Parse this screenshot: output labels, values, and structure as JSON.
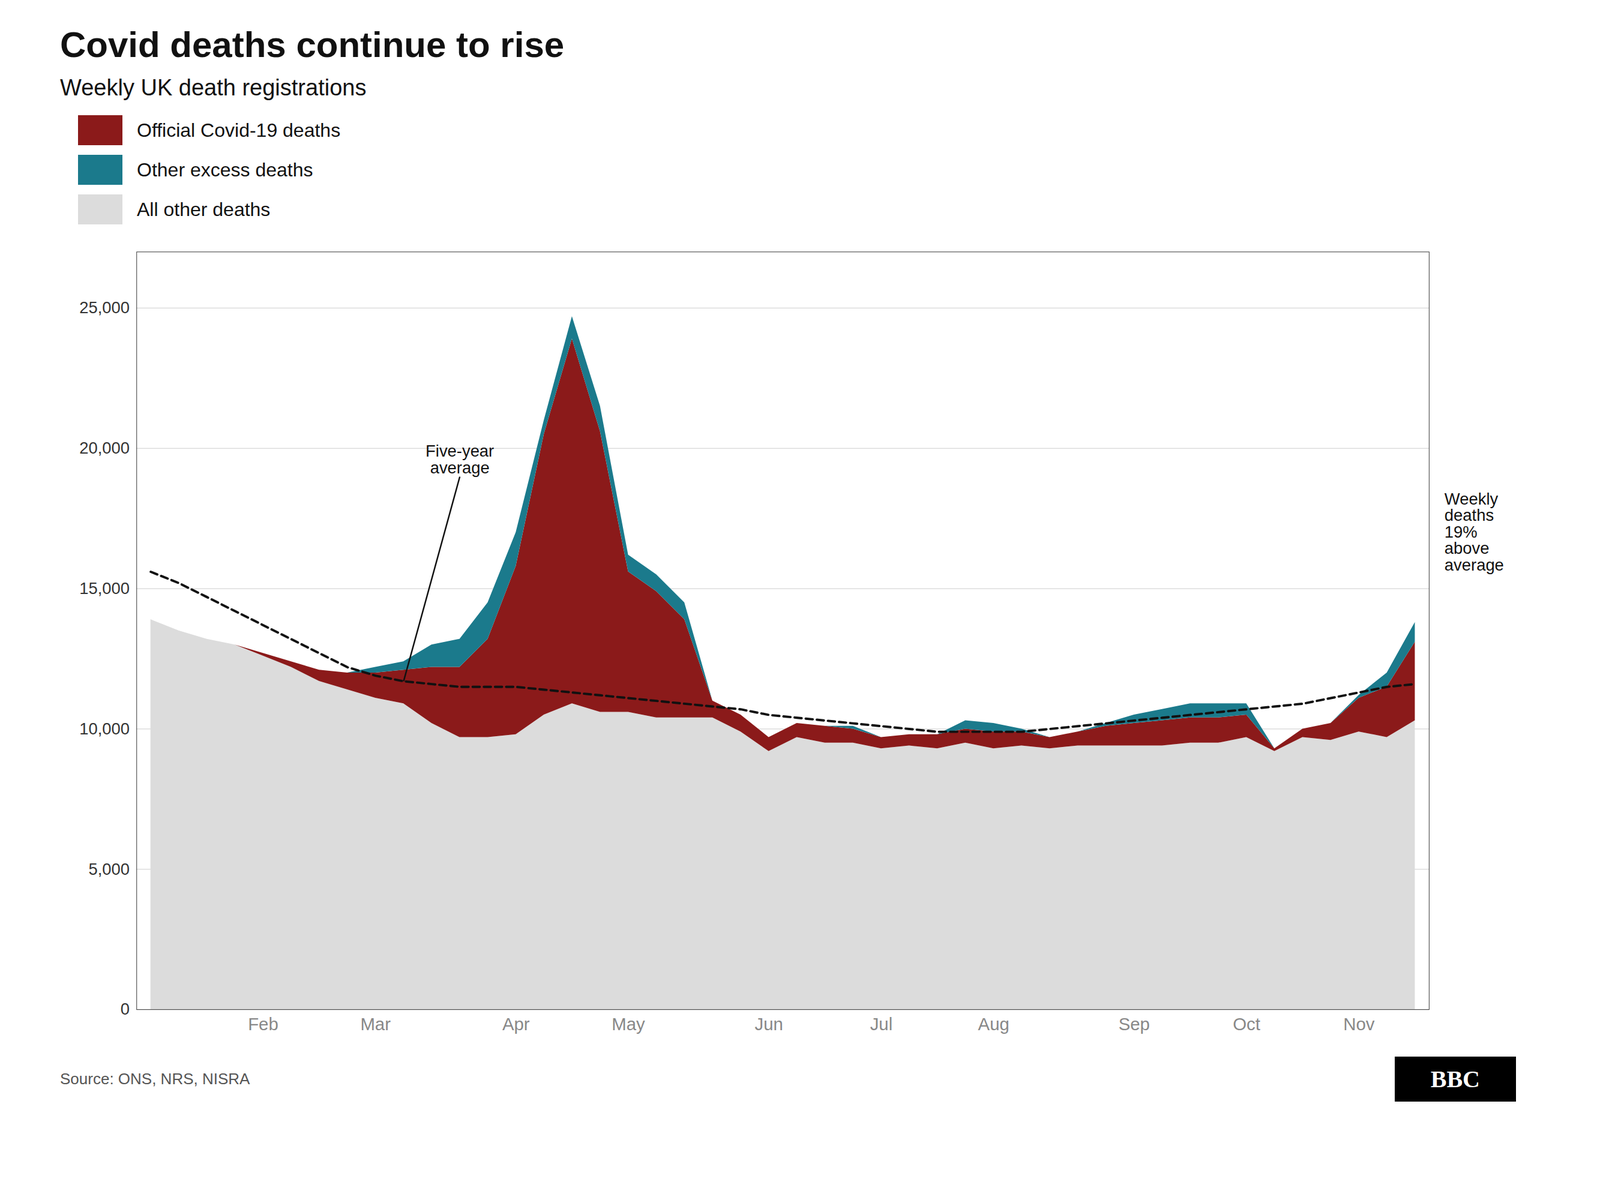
{
  "chart_data": {
    "type": "area",
    "stacked": true,
    "title": "Covid deaths continue to rise",
    "subtitle": "Weekly UK death registrations",
    "source": "Source: ONS, NRS, NISRA",
    "logo": "BBC",
    "annotations": [
      {
        "text": "Five-year\naverage"
      },
      {
        "text": "Weekly\ndeaths\n19%\nabove\naverage"
      }
    ],
    "categories": [
      null,
      null,
      null,
      null,
      "Feb",
      null,
      null,
      null,
      "Mar",
      null,
      null,
      null,
      null,
      "Apr",
      null,
      null,
      null,
      "May",
      null,
      null,
      null,
      null,
      "Jun",
      null,
      null,
      null,
      "Jul",
      null,
      null,
      null,
      "Aug",
      null,
      null,
      null,
      null,
      "Sep",
      null,
      null,
      null,
      "Oct",
      null,
      null,
      null,
      "Nov",
      null,
      null
    ],
    "series": [
      {
        "name": "Official Covid-19 deaths",
        "color": "#8B1A1A",
        "type": "area",
        "values": [
          0,
          0,
          0,
          0,
          100,
          200,
          400,
          600,
          900,
          1200,
          2000,
          2500,
          3500,
          6000,
          10000,
          13000,
          10000,
          5000,
          4500,
          3500,
          600,
          600,
          500,
          500,
          600,
          500,
          400,
          400,
          500,
          500,
          600,
          500,
          400,
          500,
          700,
          800,
          900,
          900,
          900,
          800,
          100,
          300,
          600,
          1200,
          1800,
          2800
        ]
      },
      {
        "name": "Other excess deaths",
        "color": "#1B7A8C",
        "type": "area",
        "values": [
          0,
          0,
          0,
          0,
          0,
          0,
          0,
          0,
          200,
          300,
          800,
          1000,
          1300,
          1200,
          500,
          800,
          900,
          600,
          600,
          600,
          0,
          0,
          0,
          0,
          0,
          100,
          0,
          0,
          0,
          300,
          300,
          100,
          0,
          0,
          100,
          300,
          400,
          500,
          500,
          400,
          0,
          0,
          0,
          100,
          500,
          700
        ]
      },
      {
        "name": "All other deaths",
        "color": "#DCDCDC",
        "type": "area",
        "values": [
          13900,
          13500,
          13200,
          13000,
          12600,
          12200,
          11700,
          11400,
          11100,
          10900,
          10200,
          9700,
          9700,
          9800,
          10500,
          10900,
          10600,
          10600,
          10400,
          10400,
          10400,
          9900,
          9200,
          9700,
          9500,
          9500,
          9300,
          9400,
          9300,
          9500,
          9300,
          9400,
          9300,
          9400,
          9400,
          9400,
          9400,
          9500,
          9500,
          9700,
          9200,
          9700,
          9600,
          9900,
          9700,
          10300
        ]
      },
      {
        "type": "line",
        "color": "#111111",
        "line_style": "dashed",
        "values": [
          15600,
          15200,
          14700,
          14200,
          13700,
          13200,
          12700,
          12200,
          11900,
          11700,
          11600,
          11500,
          11500,
          11500,
          11400,
          11300,
          11200,
          11100,
          11000,
          10900,
          10800,
          10700,
          10500,
          10400,
          10300,
          10200,
          10100,
          10000,
          9900,
          9900,
          9900,
          9900,
          10000,
          10100,
          10200,
          10300,
          10400,
          10500,
          10600,
          10700,
          10800,
          10900,
          11100,
          11300,
          11500,
          11600
        ]
      }
    ],
    "ylim": [
      0,
      27000
    ],
    "yticks": [
      0,
      {
        "value": 5000,
        "label": "5,000"
      },
      {
        "value": 10000,
        "label": "10,000"
      },
      {
        "value": 15000,
        "label": "15,000"
      },
      {
        "value": 20000,
        "label": "20,000"
      },
      {
        "value": 25000,
        "label": "25,000"
      }
    ],
    "grid": true
  }
}
